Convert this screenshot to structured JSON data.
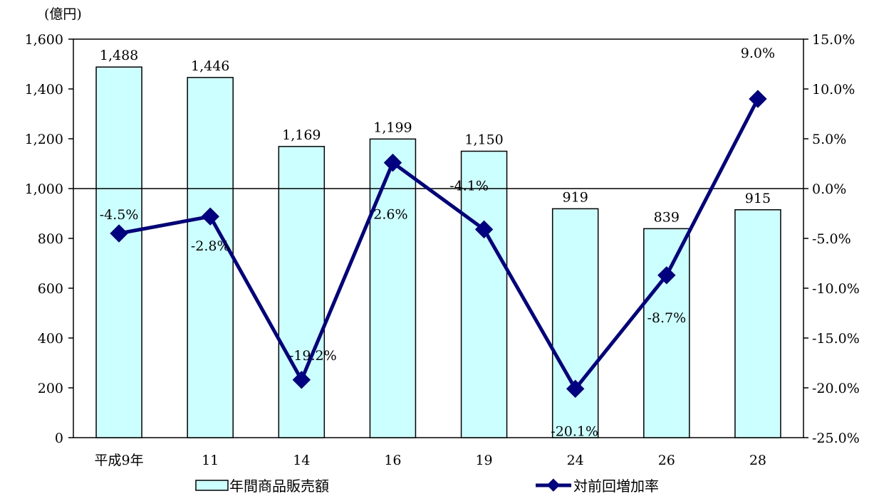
{
  "chart_data": {
    "type": "bar",
    "categories": [
      "平成9年",
      "11",
      "14",
      "16",
      "19",
      "24",
      "26",
      "28"
    ],
    "series": [
      {
        "name": "年間商品販売額",
        "type": "bar",
        "axis": "left",
        "values": [
          1488,
          1446,
          1169,
          1199,
          1150,
          919,
          839,
          915
        ],
        "labels": [
          "1,488",
          "1,446",
          "1,169",
          "1,199",
          "1,150",
          "919",
          "839",
          "915"
        ]
      },
      {
        "name": "対前回増加率",
        "type": "line",
        "axis": "right",
        "values": [
          -4.5,
          -2.8,
          -19.2,
          2.6,
          -4.1,
          -20.1,
          -8.7,
          9.0
        ],
        "labels": [
          "-4.5%",
          "-2.8%",
          "-19.2%",
          "2.6%",
          "-4.1%",
          "-20.1%",
          "-8.7%",
          "9.0%"
        ]
      }
    ],
    "y_left": {
      "unit_label": "(億円)",
      "range": [
        0,
        1600
      ],
      "ticks": [
        0,
        200,
        400,
        600,
        800,
        1000,
        1200,
        1400,
        1600
      ],
      "tick_labels": [
        "0",
        "200",
        "400",
        "600",
        "800",
        "1,000",
        "1,200",
        "1,400",
        "1,600"
      ]
    },
    "y_right": {
      "range": [
        -25,
        15
      ],
      "ticks": [
        -25,
        -20,
        -15,
        -10,
        -5,
        0,
        5,
        10,
        15
      ],
      "tick_labels": [
        "-25.0%",
        "-20.0%",
        "-15.0%",
        "-10.0%",
        "-5.0%",
        "0.0%",
        "5.0%",
        "10.0%",
        "15.0%"
      ]
    },
    "grid": false,
    "legend_position": "bottom",
    "colors": {
      "bar_fill": "#ccffff",
      "bar_stroke": "#000000",
      "line": "#000080"
    }
  }
}
